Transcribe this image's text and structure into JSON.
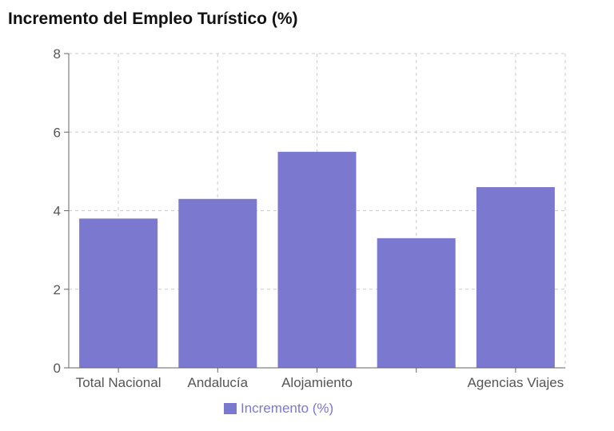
{
  "chart_data": {
    "type": "bar",
    "title": "Incremento del Empleo Turístico (%)",
    "categories": [
      "Total Nacional",
      "Andalucía",
      "Alojamiento",
      "",
      "Agencias Viajes"
    ],
    "series": [
      {
        "name": "Incremento (%)",
        "values": [
          3.8,
          4.3,
          5.5,
          3.3,
          4.6
        ],
        "color": "#7b78d0"
      }
    ],
    "xlabel": "",
    "ylabel": "",
    "ylim": [
      0,
      8
    ],
    "yticks": [
      0,
      2,
      4,
      6,
      8
    ],
    "grid": true,
    "legend": "bottom"
  }
}
